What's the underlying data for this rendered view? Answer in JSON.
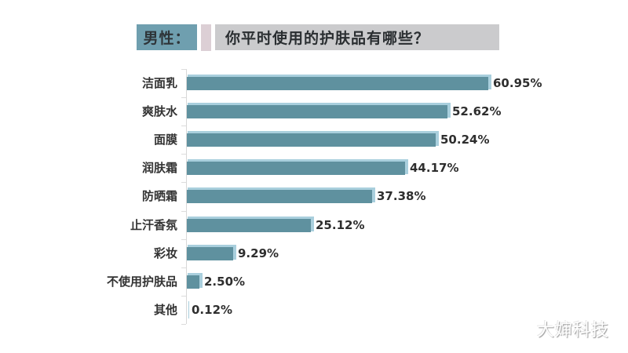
{
  "header": {
    "tag": "男性：",
    "question": "你平时使用的护肤品有哪些？"
  },
  "watermark": "大婶科技",
  "colors": {
    "bar": "#5f919f",
    "bar_shadow": "#a9cfdd",
    "tag_bg": "#6f9faf",
    "question_bg": "#cbcbcd",
    "separator": "#dccfd5"
  },
  "chart_data": {
    "type": "bar",
    "orientation": "horizontal",
    "title": "男性：你平时使用的护肤品有哪些？",
    "xlabel": "",
    "ylabel": "",
    "categories": [
      "洁面乳",
      "爽肤水",
      "面膜",
      "润肤霜",
      "防晒霜",
      "止汗香氛",
      "彩妆",
      "不使用护肤品",
      "其他"
    ],
    "values": [
      60.95,
      52.62,
      50.24,
      44.17,
      37.38,
      25.12,
      9.29,
      2.5,
      0.12
    ],
    "labels": [
      "60.95%",
      "52.62%",
      "50.24%",
      "44.17%",
      "37.38%",
      "25.12%",
      "9.29%",
      "2.50%",
      "0.12%"
    ],
    "unit": "%",
    "grid": false,
    "legend": null
  }
}
